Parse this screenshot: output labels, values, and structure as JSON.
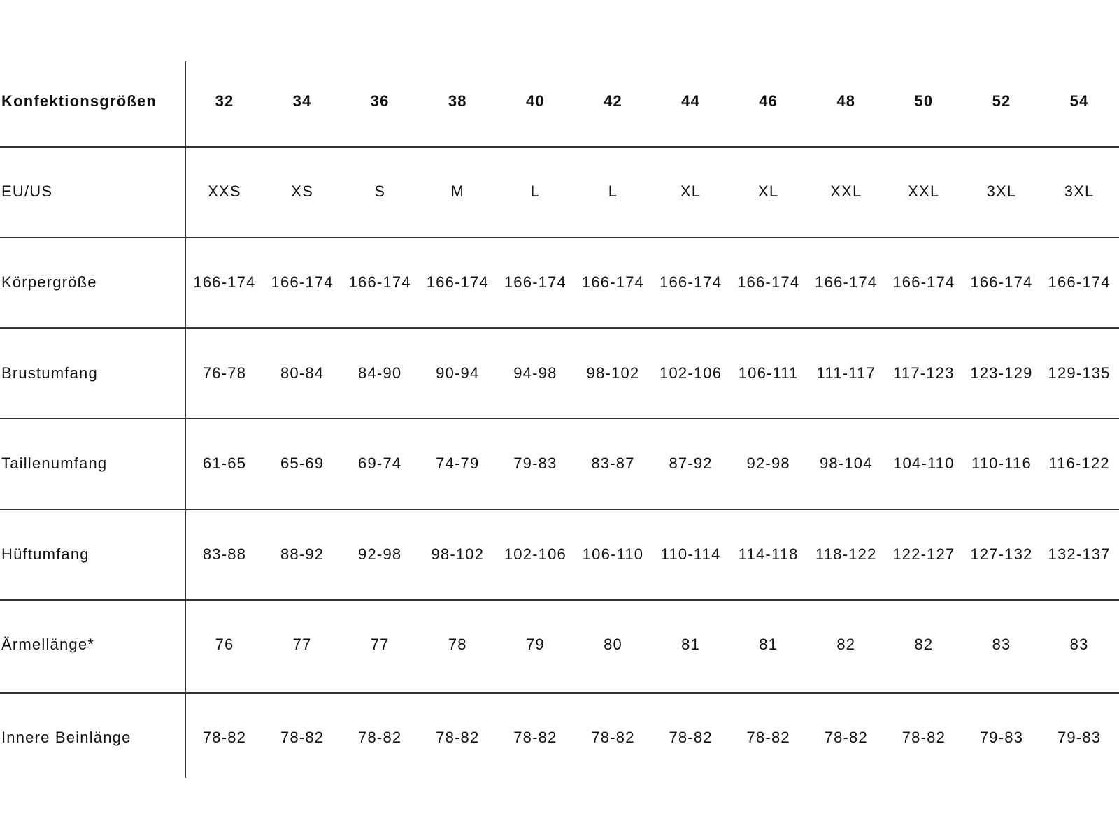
{
  "table": {
    "header": {
      "label": "Konfektionsgrößen",
      "cells": [
        "32",
        "34",
        "36",
        "38",
        "40",
        "42",
        "44",
        "46",
        "48",
        "50",
        "52",
        "54"
      ]
    },
    "rows": [
      {
        "label": "EU/US",
        "cells": [
          "XXS",
          "XS",
          "S",
          "M",
          "L",
          "L",
          "XL",
          "XL",
          "XXL",
          "XXL",
          "3XL",
          "3XL"
        ]
      },
      {
        "label": "Körpergröße",
        "cells": [
          "166-174",
          "166-174",
          "166-174",
          "166-174",
          "166-174",
          "166-174",
          "166-174",
          "166-174",
          "166-174",
          "166-174",
          "166-174",
          "166-174"
        ]
      },
      {
        "label": "Brustumfang",
        "cells": [
          "76-78",
          "80-84",
          "84-90",
          "90-94",
          "94-98",
          "98-102",
          "102-106",
          "106-111",
          "111-117",
          "117-123",
          "123-129",
          "129-135"
        ]
      },
      {
        "label": "Taillenumfang",
        "cells": [
          "61-65",
          "65-69",
          "69-74",
          "74-79",
          "79-83",
          "83-87",
          "87-92",
          "92-98",
          "98-104",
          "104-110",
          "110-116",
          "116-122"
        ]
      },
      {
        "label": "Hüftumfang",
        "cells": [
          "83-88",
          "88-92",
          "92-98",
          "98-102",
          "102-106",
          "106-110",
          "110-114",
          "114-118",
          "118-122",
          "122-127",
          "127-132",
          "132-137"
        ]
      },
      {
        "label": "Ärmellänge*",
        "cells": [
          "76",
          "77",
          "77",
          "78",
          "79",
          "80",
          "81",
          "81",
          "82",
          "82",
          "83",
          "83"
        ]
      },
      {
        "label": "Innere Beinlänge",
        "cells": [
          "78-82",
          "78-82",
          "78-82",
          "78-82",
          "78-82",
          "78-82",
          "78-82",
          "78-82",
          "78-82",
          "78-82",
          "79-83",
          "79-83"
        ]
      }
    ]
  }
}
